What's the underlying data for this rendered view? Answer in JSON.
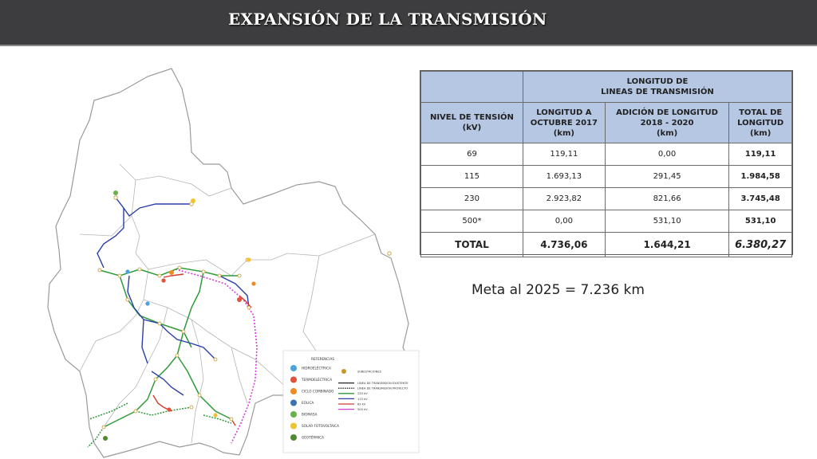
{
  "header": {
    "title": "EXPANSIÓN DE LA TRANSMISIÓN"
  },
  "table": {
    "title_line1": "LONGITUD DE",
    "title_line2": "LINEAS DE TRANSMISIÓN",
    "columns": [
      [
        "NIVEL DE TENSIÓN",
        "(kV)"
      ],
      [
        "LONGITUD A",
        "OCTUBRE 2017",
        "(km)"
      ],
      [
        "ADICIÓN DE LONGITUD",
        "2018 - 2020",
        "(km)"
      ],
      [
        "TOTAL DE",
        "LONGITUD",
        "(km)"
      ]
    ],
    "rows": [
      [
        "69",
        "119,11",
        "0,00",
        "119,11"
      ],
      [
        "115",
        "1.693,13",
        "291,45",
        "1.984,58"
      ],
      [
        "230",
        "2.923,82",
        "821,66",
        "3.745,48"
      ],
      [
        "500*",
        "0,00",
        "531,10",
        "531,10"
      ]
    ],
    "total": [
      "TOTAL",
      "4.736,06",
      "1.644,21",
      "6.380,27"
    ]
  },
  "meta_text": "Meta al 2025 = 7.236 km",
  "map": {
    "legend": {
      "title": "REFERENCIAS",
      "left_items": [
        {
          "label": "HIDROELÉCTRICA",
          "icon": "hydro-icon",
          "color": "#4aa3df"
        },
        {
          "label": "TERMOELÉCTRICA",
          "icon": "thermo-icon",
          "color": "#e0523a"
        },
        {
          "label": "CICLO COMBINADO",
          "icon": "combined-cycle-icon",
          "color": "#f08a24"
        },
        {
          "label": "EÓLICA",
          "icon": "wind-icon",
          "color": "#3a6fb0"
        },
        {
          "label": "BIOMASA",
          "icon": "biomass-icon",
          "color": "#6ab04c"
        },
        {
          "label": "SOLAR FOTOVOLTAICA",
          "icon": "solar-icon",
          "color": "#f2c230"
        },
        {
          "label": "GEOTÉRMICA",
          "icon": "geothermal-icon",
          "color": "#4e8a2e"
        }
      ],
      "right_items": [
        {
          "label": "SUBESTACIONES",
          "kind": "substation",
          "color": "#c8962a"
        },
        {
          "label": "LÍNEA DE TRANSMISIÓN EXISTENTE",
          "kind": "solid",
          "color": "#222222"
        },
        {
          "label": "LÍNEA DE TRANSMISIÓN PROYECTO",
          "kind": "dotted",
          "color": "#222222"
        },
        {
          "label": "230 kV",
          "kind": "solid",
          "color": "#2e9b3a"
        },
        {
          "label": "115 kV",
          "kind": "solid",
          "color": "#2b3fa8"
        },
        {
          "label": "69 kV",
          "kind": "solid",
          "color": "#d43a2a"
        },
        {
          "label": "500 kV",
          "kind": "solid",
          "color": "#d13fd6"
        }
      ]
    },
    "line_colors": {
      "kv230": "#2e9b3a",
      "kv115": "#2b3fa8",
      "kv69": "#d43a2a",
      "kv500": "#d13fd6"
    }
  }
}
